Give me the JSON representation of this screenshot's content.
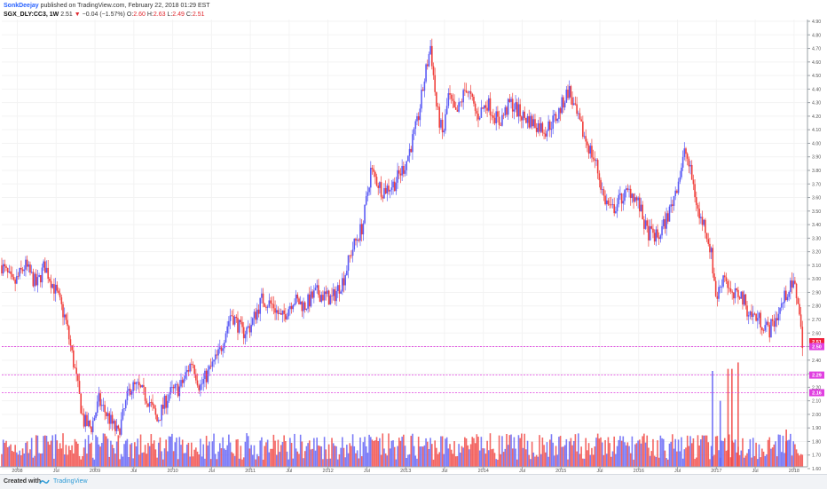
{
  "header": {
    "author": "SonkDeejay",
    "published_text": "published on TradingView.com, February 22, 2018 01:29 EST",
    "symbol": "SGX_DLY:CC3, 1W",
    "last": "2.51",
    "change_arrow": "▼",
    "change": "−0.04 (−1.57%)",
    "o_label": "O:",
    "o_val": "2.60",
    "h_label": "H:",
    "h_val": "2.63",
    "l_label": "L:",
    "l_val": "2.49",
    "c_label": "C:",
    "c_val": "2.51"
  },
  "footer": {
    "created_with": "Created with",
    "brand": "TradingView",
    "logo_icon": "tradingview-logo-icon"
  },
  "colors": {
    "up": "#5b5bf5",
    "down": "#f0403c",
    "hline": "#e040e0",
    "last_label": "#f0203a"
  },
  "chart_data": {
    "type": "candlestick",
    "title": "",
    "interval": "1W",
    "y_ticks": [
      "1.60",
      "1.70",
      "1.80",
      "1.90",
      "2.00",
      "2.10",
      "2.20",
      "2.30",
      "2.40",
      "2.50",
      "2.60",
      "2.70",
      "2.80",
      "2.90",
      "3.00",
      "3.10",
      "3.20",
      "3.30",
      "3.40",
      "3.50",
      "3.60",
      "3.70",
      "3.80",
      "3.90",
      "4.00",
      "4.10",
      "4.20",
      "4.30",
      "4.40",
      "4.50",
      "4.60",
      "4.70",
      "4.80",
      "4.90"
    ],
    "ylim": [
      1.6,
      4.9
    ],
    "x_ticks": [
      "2008",
      "Jul",
      "2009",
      "Jul",
      "2010",
      "Jul",
      "2011",
      "Jul",
      "2012",
      "Jul",
      "2013",
      "Jul",
      "2014",
      "Jul",
      "2015",
      "Jul",
      "2016",
      "Jul",
      "2017",
      "Jul",
      "2018"
    ],
    "xlim": [
      2007.8,
      2018.15
    ],
    "price_path": [
      [
        2007.8,
        3.1
      ],
      [
        2007.95,
        2.95
      ],
      [
        2008.1,
        3.1
      ],
      [
        2008.25,
        2.95
      ],
      [
        2008.35,
        3.1
      ],
      [
        2008.5,
        2.9
      ],
      [
        2008.62,
        2.7
      ],
      [
        2008.75,
        2.3
      ],
      [
        2008.85,
        1.95
      ],
      [
        2008.95,
        1.9
      ],
      [
        2009.05,
        2.1
      ],
      [
        2009.2,
        1.95
      ],
      [
        2009.3,
        1.85
      ],
      [
        2009.45,
        2.2
      ],
      [
        2009.55,
        2.2
      ],
      [
        2009.7,
        2.1
      ],
      [
        2009.8,
        1.95
      ],
      [
        2009.95,
        2.15
      ],
      [
        2010.1,
        2.2
      ],
      [
        2010.25,
        2.4
      ],
      [
        2010.35,
        2.2
      ],
      [
        2010.5,
        2.35
      ],
      [
        2010.6,
        2.45
      ],
      [
        2010.75,
        2.75
      ],
      [
        2010.9,
        2.6
      ],
      [
        2011.0,
        2.65
      ],
      [
        2011.15,
        2.85
      ],
      [
        2011.3,
        2.8
      ],
      [
        2011.4,
        2.7
      ],
      [
        2011.55,
        2.85
      ],
      [
        2011.7,
        2.8
      ],
      [
        2011.85,
        2.9
      ],
      [
        2012.05,
        2.85
      ],
      [
        2012.2,
        3.0
      ],
      [
        2012.3,
        3.2
      ],
      [
        2012.45,
        3.4
      ],
      [
        2012.55,
        3.8
      ],
      [
        2012.7,
        3.65
      ],
      [
        2012.85,
        3.7
      ],
      [
        2013.0,
        3.85
      ],
      [
        2013.15,
        4.15
      ],
      [
        2013.25,
        4.5
      ],
      [
        2013.32,
        4.72
      ],
      [
        2013.4,
        4.25
      ],
      [
        2013.48,
        4.05
      ],
      [
        2013.55,
        4.35
      ],
      [
        2013.65,
        4.2
      ],
      [
        2013.78,
        4.42
      ],
      [
        2013.92,
        4.2
      ],
      [
        2014.05,
        4.3
      ],
      [
        2014.2,
        4.15
      ],
      [
        2014.35,
        4.3
      ],
      [
        2014.5,
        4.2
      ],
      [
        2014.65,
        4.15
      ],
      [
        2014.8,
        4.1
      ],
      [
        2014.95,
        4.2
      ],
      [
        2015.1,
        4.4
      ],
      [
        2015.2,
        4.2
      ],
      [
        2015.3,
        4.05
      ],
      [
        2015.45,
        3.85
      ],
      [
        2015.55,
        3.6
      ],
      [
        2015.65,
        3.5
      ],
      [
        2015.78,
        3.6
      ],
      [
        2015.9,
        3.65
      ],
      [
        2016.0,
        3.55
      ],
      [
        2016.1,
        3.35
      ],
      [
        2016.25,
        3.3
      ],
      [
        2016.4,
        3.5
      ],
      [
        2016.52,
        3.75
      ],
      [
        2016.6,
        3.95
      ],
      [
        2016.7,
        3.7
      ],
      [
        2016.78,
        3.45
      ],
      [
        2016.85,
        3.4
      ],
      [
        2016.93,
        3.2
      ],
      [
        2017.0,
        2.85
      ],
      [
        2017.1,
        3.05
      ],
      [
        2017.2,
        2.85
      ],
      [
        2017.3,
        2.9
      ],
      [
        2017.42,
        2.75
      ],
      [
        2017.55,
        2.7
      ],
      [
        2017.68,
        2.62
      ],
      [
        2017.8,
        2.75
      ],
      [
        2017.92,
        2.92
      ],
      [
        2018.0,
        2.95
      ],
      [
        2018.05,
        2.85
      ],
      [
        2018.09,
        2.6
      ],
      [
        2018.12,
        2.51
      ]
    ],
    "horizontal_lines": [
      {
        "price": 2.51,
        "label": "2.51",
        "color": "#f0203a"
      },
      {
        "price": 2.5,
        "label": "2.50",
        "color": "#e040e0"
      },
      {
        "price": 2.29,
        "label": "2.29",
        "color": "#e040e0"
      },
      {
        "price": 2.16,
        "label": "2.16",
        "color": "#e040e0"
      }
    ],
    "volume_note": "volume histogram at bottom",
    "volume_spikes": [
      [
        2016.95,
        0.9
      ],
      [
        2017.05,
        0.62
      ],
      [
        2017.15,
        0.92
      ],
      [
        2017.2,
        0.92
      ],
      [
        2017.28,
        0.98
      ],
      [
        2017.9,
        0.35
      ]
    ]
  }
}
